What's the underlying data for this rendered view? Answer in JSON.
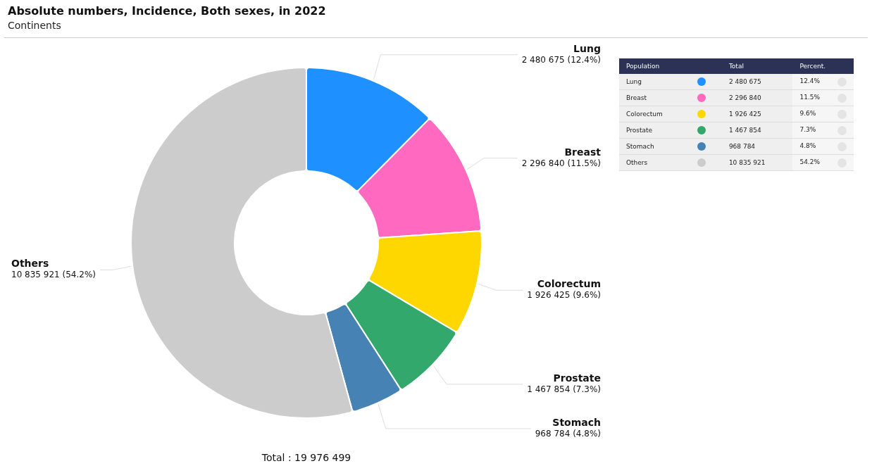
{
  "chart_data": [
    {
      "type": "donut",
      "title": "Absolute numbers, Incidence, Both sexes, in 2022",
      "subtitle": "Continents",
      "categories": [
        "Lung",
        "Breast",
        "Colorectum",
        "Prostate",
        "Stomach",
        "Others"
      ],
      "values": [
        2480675,
        2296840,
        1926425,
        1467854,
        968784,
        10835921
      ],
      "colors": [
        "#1e90ff",
        "#ff69c0",
        "#ffd700",
        "#32a86c",
        "#4682b4",
        "#cccccc"
      ],
      "value_labels": [
        "2 480 675 (12.4%)",
        "2 296 840 (11.5%)",
        "1 926 425 (9.6%)",
        "1 467 854 (7.3%)",
        "968 784 (4.8%)",
        "10 835 921 (54.2%)"
      ],
      "annotations": [
        "Total : 19 976 499"
      ],
      "legend": false
    },
    {
      "type": "other",
      "annotations": [
        "Population",
        "Total",
        "Percent.",
        "Lung",
        "2 480 675",
        "12.4%",
        "Breast",
        "2 296 840",
        "11.5%",
        "Colorectum",
        "1 926 425",
        "9.6%",
        "Prostate",
        "1 467 854",
        "7.3%",
        "Stomach",
        "968 784",
        "4.8%",
        "Others",
        "10 835 921",
        "54.2%"
      ]
    }
  ]
}
